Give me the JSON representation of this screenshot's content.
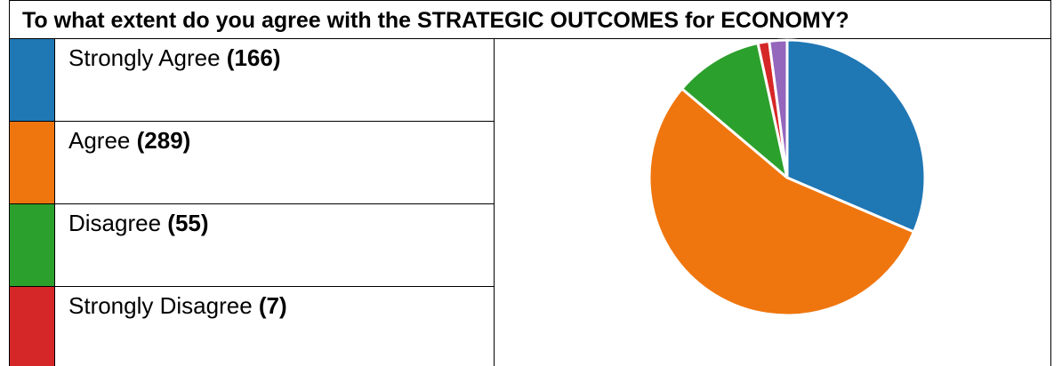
{
  "chart_data": {
    "type": "pie",
    "title": "To what extent do you agree with the STRATEGIC OUTCOMES for ECONOMY?",
    "categories": [
      "Strongly Agree",
      "Agree",
      "Disagree",
      "Strongly Disagree",
      null
    ],
    "values": [
      166,
      289,
      55,
      7,
      11
    ],
    "value_labels": [
      "(166)",
      "(289)",
      "(55)",
      "(7)",
      null
    ],
    "colors": [
      "#1f77b4",
      "#ef760e",
      "#2ca02c",
      "#d62728",
      "#9467bd"
    ]
  }
}
